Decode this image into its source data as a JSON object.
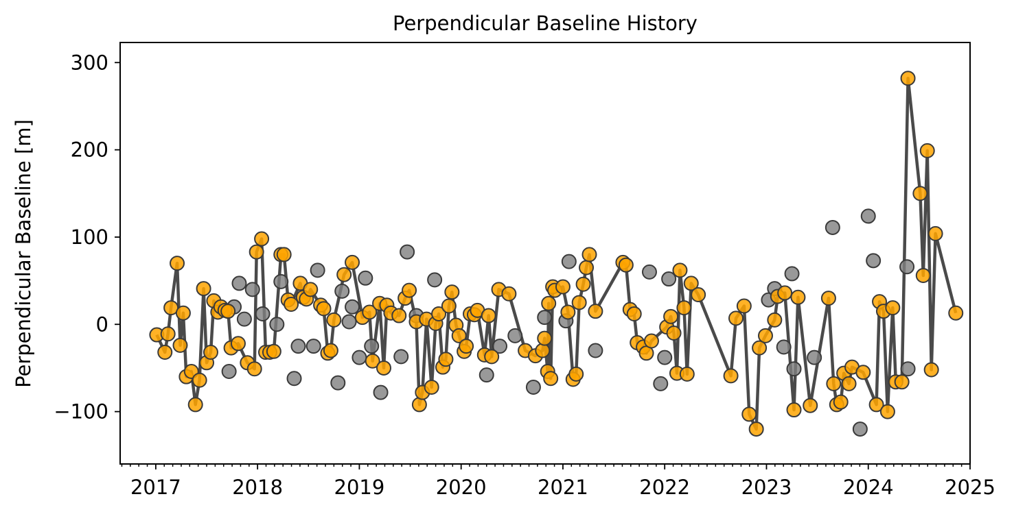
{
  "chart_data": {
    "type": "scatter",
    "title": "Perpendicular Baseline History",
    "xlabel": "",
    "ylabel": "Perpendicular Baseline [m]",
    "xlim": [
      2016.65,
      2025.0
    ],
    "ylim": [
      -160,
      323
    ],
    "x_ticks": [
      2017,
      2018,
      2019,
      2020,
      2021,
      2022,
      2023,
      2024,
      2025
    ],
    "y_ticks": [
      -100,
      0,
      100,
      200,
      300
    ],
    "y_tick_labels": [
      "−100",
      "0",
      "100",
      "200",
      "300"
    ],
    "grid": false,
    "colors": {
      "line": "#4a4a4a",
      "selected": "#ffa500",
      "unselected": "#808080",
      "edge": "#3a3a3a"
    },
    "series": [
      {
        "values": [
          [
            2017.01,
            -12
          ],
          [
            2017.09,
            -32
          ],
          [
            2017.12,
            -11
          ],
          [
            2017.15,
            19
          ],
          [
            2017.21,
            70
          ],
          [
            2017.24,
            -24
          ],
          [
            2017.27,
            13
          ],
          [
            2017.3,
            -60
          ],
          [
            2017.35,
            -54
          ],
          [
            2017.39,
            -92
          ],
          [
            2017.43,
            -64
          ],
          [
            2017.47,
            41
          ],
          [
            2017.5,
            -44
          ],
          [
            2017.54,
            -32
          ],
          [
            2017.57,
            27
          ],
          [
            2017.61,
            14
          ],
          [
            2017.64,
            20
          ],
          [
            2017.68,
            16
          ],
          [
            2017.71,
            15
          ],
          [
            2017.74,
            -27
          ],
          [
            2017.81,
            -22
          ],
          [
            2017.9,
            -44
          ],
          [
            2017.97,
            -51
          ],
          [
            2017.99,
            83
          ],
          [
            2018.04,
            98
          ],
          [
            2018.08,
            -32
          ],
          [
            2018.12,
            -32
          ],
          [
            2018.16,
            -31
          ],
          [
            2018.23,
            80
          ],
          [
            2018.26,
            80
          ],
          [
            2018.3,
            28
          ],
          [
            2018.33,
            23
          ],
          [
            2018.42,
            47
          ],
          [
            2018.45,
            31
          ],
          [
            2018.48,
            29
          ],
          [
            2018.52,
            40
          ],
          [
            2018.62,
            22
          ],
          [
            2018.65,
            18
          ],
          [
            2018.69,
            -33
          ],
          [
            2018.72,
            -30
          ],
          [
            2018.75,
            5
          ],
          [
            2018.85,
            57
          ],
          [
            2018.93,
            71
          ],
          [
            2019.03,
            8
          ],
          [
            2019.1,
            14
          ],
          [
            2019.13,
            -42
          ],
          [
            2019.2,
            24
          ],
          [
            2019.24,
            -50
          ],
          [
            2019.27,
            22
          ],
          [
            2019.31,
            13
          ],
          [
            2019.39,
            10
          ],
          [
            2019.45,
            30
          ],
          [
            2019.49,
            39
          ],
          [
            2019.56,
            3
          ],
          [
            2019.59,
            -92
          ],
          [
            2019.62,
            -78
          ],
          [
            2019.66,
            6
          ],
          [
            2019.71,
            -72
          ],
          [
            2019.75,
            1
          ],
          [
            2019.78,
            12
          ],
          [
            2019.82,
            -49
          ],
          [
            2019.85,
            -40
          ],
          [
            2019.88,
            21
          ],
          [
            2019.91,
            37
          ],
          [
            2019.95,
            -1
          ],
          [
            2019.98,
            -13
          ],
          [
            2020.03,
            -31
          ],
          [
            2020.05,
            -25
          ],
          [
            2020.09,
            12
          ],
          [
            2020.13,
            11
          ],
          [
            2020.16,
            16
          ],
          [
            2020.23,
            -35
          ],
          [
            2020.27,
            10
          ],
          [
            2020.3,
            -37
          ],
          [
            2020.37,
            40
          ],
          [
            2020.47,
            35
          ],
          [
            2020.63,
            -30
          ],
          [
            2020.73,
            -36
          ],
          [
            2020.8,
            -30
          ],
          [
            2020.82,
            -16
          ],
          [
            2020.85,
            -54
          ],
          [
            2020.86,
            24
          ],
          [
            2020.88,
            -62
          ],
          [
            2020.9,
            43
          ],
          [
            2020.92,
            39
          ],
          [
            2021.0,
            43
          ],
          [
            2021.05,
            14
          ],
          [
            2021.1,
            -63
          ],
          [
            2021.13,
            -57
          ],
          [
            2021.16,
            25
          ],
          [
            2021.2,
            46
          ],
          [
            2021.23,
            65
          ],
          [
            2021.26,
            80
          ],
          [
            2021.32,
            15
          ],
          [
            2021.59,
            71
          ],
          [
            2021.62,
            68
          ],
          [
            2021.66,
            17
          ],
          [
            2021.7,
            12
          ],
          [
            2021.73,
            -21
          ],
          [
            2021.79,
            -26
          ],
          [
            2021.82,
            -33
          ],
          [
            2021.87,
            -19
          ],
          [
            2022.02,
            -3
          ],
          [
            2022.06,
            9
          ],
          [
            2022.09,
            -10
          ],
          [
            2022.12,
            -56
          ],
          [
            2022.15,
            62
          ],
          [
            2022.19,
            19
          ],
          [
            2022.22,
            -57
          ],
          [
            2022.26,
            47
          ],
          [
            2022.33,
            34
          ],
          [
            2022.65,
            -59
          ],
          [
            2022.7,
            7
          ],
          [
            2022.78,
            21
          ],
          [
            2022.83,
            -103
          ],
          [
            2022.9,
            -120
          ],
          [
            2022.93,
            -27
          ],
          [
            2022.99,
            -13
          ],
          [
            2023.08,
            5
          ],
          [
            2023.11,
            32
          ],
          [
            2023.18,
            36
          ],
          [
            2023.27,
            -98
          ],
          [
            2023.31,
            31
          ],
          [
            2023.43,
            -93
          ],
          [
            2023.61,
            30
          ],
          [
            2023.66,
            -68
          ],
          [
            2023.69,
            -92
          ],
          [
            2023.73,
            -89
          ],
          [
            2023.76,
            -56
          ],
          [
            2023.81,
            -68
          ],
          [
            2023.84,
            -49
          ],
          [
            2023.95,
            -55
          ],
          [
            2024.08,
            -92
          ],
          [
            2024.11,
            26
          ],
          [
            2024.15,
            15
          ],
          [
            2024.19,
            -100
          ],
          [
            2024.24,
            19
          ],
          [
            2024.27,
            -66
          ],
          [
            2024.33,
            -66
          ],
          [
            2024.39,
            282
          ],
          [
            2024.51,
            150
          ],
          [
            2024.54,
            56
          ],
          [
            2024.58,
            199
          ],
          [
            2024.62,
            -52
          ],
          [
            2024.66,
            104
          ],
          [
            2024.86,
            13
          ]
        ]
      },
      {
        "values": [
          [
            2017.72,
            -54
          ],
          [
            2017.77,
            20
          ],
          [
            2017.82,
            47
          ],
          [
            2017.87,
            6
          ],
          [
            2017.95,
            40
          ],
          [
            2018.05,
            12
          ],
          [
            2018.19,
            0
          ],
          [
            2018.23,
            49
          ],
          [
            2018.36,
            -62
          ],
          [
            2018.4,
            -25
          ],
          [
            2018.55,
            -25
          ],
          [
            2018.59,
            62
          ],
          [
            2018.79,
            -67
          ],
          [
            2018.83,
            38
          ],
          [
            2018.9,
            3
          ],
          [
            2018.93,
            20
          ],
          [
            2019.0,
            -38
          ],
          [
            2019.06,
            53
          ],
          [
            2019.12,
            -25
          ],
          [
            2019.21,
            -78
          ],
          [
            2019.41,
            -37
          ],
          [
            2019.47,
            83
          ],
          [
            2019.56,
            10
          ],
          [
            2019.74,
            51
          ],
          [
            2020.25,
            -58
          ],
          [
            2020.38,
            -25
          ],
          [
            2020.53,
            -13
          ],
          [
            2020.71,
            -72
          ],
          [
            2020.82,
            8
          ],
          [
            2021.03,
            4
          ],
          [
            2021.06,
            72
          ],
          [
            2021.32,
            -30
          ],
          [
            2021.85,
            60
          ],
          [
            2021.96,
            -68
          ],
          [
            2022.0,
            -38
          ],
          [
            2022.04,
            52
          ],
          [
            2023.02,
            28
          ],
          [
            2023.08,
            41
          ],
          [
            2023.17,
            -26
          ],
          [
            2023.25,
            58
          ],
          [
            2023.27,
            -51
          ],
          [
            2023.47,
            -38
          ],
          [
            2023.65,
            111
          ],
          [
            2023.92,
            -120
          ],
          [
            2024.0,
            124
          ],
          [
            2024.05,
            73
          ],
          [
            2024.38,
            66
          ],
          [
            2024.39,
            -51
          ]
        ]
      }
    ]
  }
}
